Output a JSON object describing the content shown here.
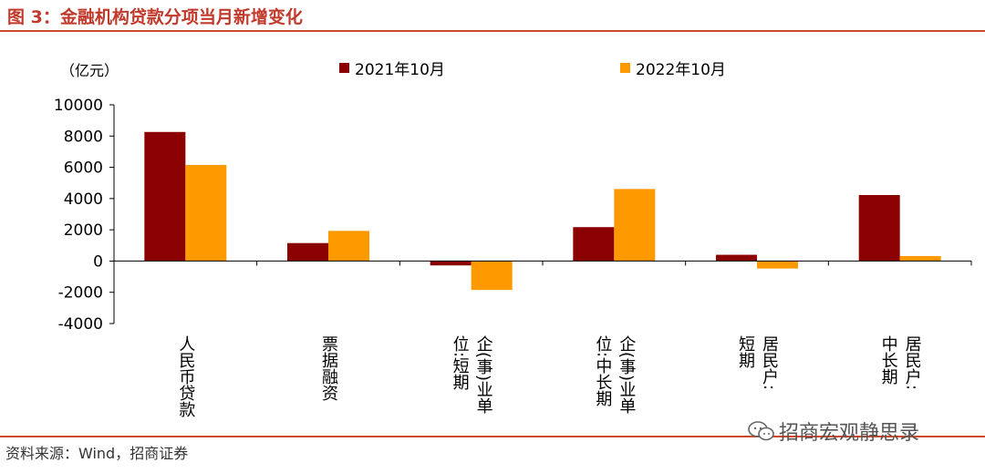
{
  "header": {
    "title": "图 3：金融机构贷款分项当月新增变化"
  },
  "footer": {
    "source": "资料来源：Wind，招商证券",
    "watermark": "招商宏观静思录"
  },
  "icons": {
    "watermark_icon": "wechat-icon"
  },
  "colors": {
    "series_2021": "#8b0000",
    "series_2022": "#ff9900",
    "rule": "#d0472a",
    "title": "#c0392b"
  },
  "chart_data": {
    "type": "bar",
    "unit_label": "（亿元）",
    "categories": [
      [
        "人民币贷款"
      ],
      [
        "票据融资"
      ],
      [
        "企(事)业单",
        "位:短期"
      ],
      [
        "企(事)业单",
        "位:中长期"
      ],
      [
        "居民户:",
        "短期"
      ],
      [
        "居民户:",
        "中长期"
      ]
    ],
    "series": [
      {
        "name": "2021年10月",
        "color": "#8b0000",
        "values": [
          8262,
          1150,
          -280,
          2170,
          400,
          4225
        ]
      },
      {
        "name": "2022年10月",
        "color": "#ff9900",
        "values": [
          6152,
          1930,
          -1850,
          4611,
          -480,
          320
        ]
      }
    ],
    "ylim": [
      -4000,
      10000
    ],
    "yticks": [
      -4000,
      -2000,
      0,
      2000,
      4000,
      6000,
      8000,
      10000
    ],
    "legend_position": "top",
    "grid": false
  }
}
